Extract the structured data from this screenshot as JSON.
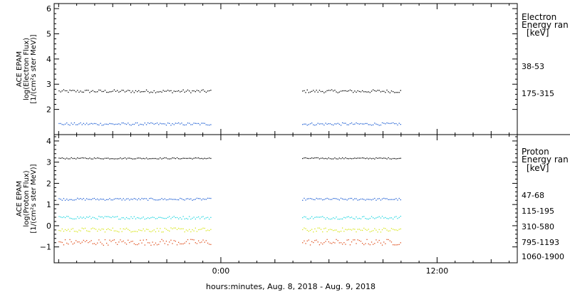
{
  "xaxis": {
    "label": "hours:minutes, Aug.  8, 2018 - Aug.  9, 2018",
    "ticks": [
      {
        "label": "0:00",
        "t": 0
      },
      {
        "label": "12:00",
        "t": 12
      }
    ],
    "range": [
      -9.25,
      16.45
    ]
  },
  "chart_data": [
    {
      "type": "scatter",
      "ylabel": [
        "ACE EPAM",
        "log(Electron Flux)",
        "[1/(cm²s ster MeV)]"
      ],
      "ylim": [
        1.0,
        6.2
      ],
      "yticks": [
        2,
        3,
        4,
        5,
        6
      ],
      "side_title": [
        "Electron",
        "Energy ran"
      ],
      "side_unit": "[keV]",
      "grid": false,
      "gap": [
        -0.5,
        4.5
      ],
      "x_range": [
        -9.0,
        10.0
      ],
      "series": [
        {
          "name": "38-53",
          "color": "#000000",
          "level": 2.72,
          "jitter": 0.06
        },
        {
          "name": "175-315",
          "color": "#1f5fd4",
          "level": 1.42,
          "jitter": 0.05
        }
      ]
    },
    {
      "type": "scatter",
      "ylabel": [
        "ACE EPAM",
        "log(Proton Flux)",
        "[1/(cm²s ster MeV)]"
      ],
      "ylim": [
        -1.75,
        4.3
      ],
      "yticks": [
        -1,
        0,
        1,
        2,
        3,
        4
      ],
      "side_title": [
        "Proton",
        "Energy ran"
      ],
      "side_unit": "[keV]",
      "grid": false,
      "gap": [
        -0.5,
        4.5
      ],
      "x_range": [
        -9.0,
        10.0
      ],
      "series": [
        {
          "name": "47-68",
          "color": "#000000",
          "level": 3.18,
          "jitter": 0.03
        },
        {
          "name": "115-195",
          "color": "#1f5fd4",
          "level": 1.25,
          "jitter": 0.05
        },
        {
          "name": "310-580",
          "color": "#22d6e0",
          "level": 0.38,
          "jitter": 0.07
        },
        {
          "name": "795-1193",
          "color": "#d8e61a",
          "level": -0.2,
          "jitter": 0.1
        },
        {
          "name": "1060-1900",
          "color": "#e0501e",
          "level": -0.78,
          "jitter": 0.14
        }
      ]
    }
  ]
}
